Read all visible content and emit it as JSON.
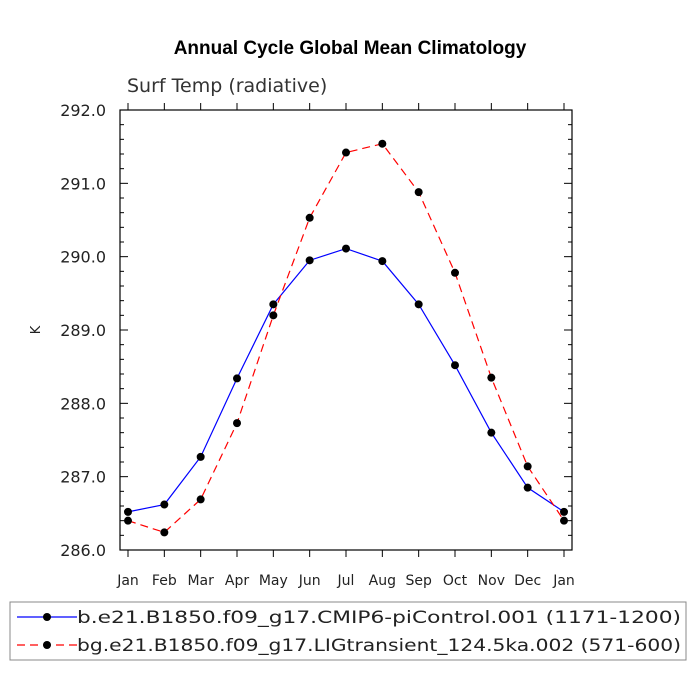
{
  "chart_data": {
    "type": "line",
    "title": "Annual Cycle Global Mean Climatology",
    "subtitle": "Surf Temp (radiative)",
    "ylabel": "K",
    "xlabel": "",
    "categories": [
      "Jan",
      "Feb",
      "Mar",
      "Apr",
      "May",
      "Jun",
      "Jul",
      "Aug",
      "Sep",
      "Oct",
      "Nov",
      "Dec",
      "Jan"
    ],
    "ylim": [
      286.0,
      292.0
    ],
    "yticks": [
      "286.0",
      "287.0",
      "288.0",
      "289.0",
      "290.0",
      "291.0",
      "292.0"
    ],
    "grid": false,
    "legend_position": "bottom",
    "series": [
      {
        "name": "b.e21.B1850.f09_g17.CMIP6-piControl.001 (1171-1200)",
        "color": "#0000ff",
        "style": "solid",
        "values": [
          286.52,
          286.62,
          287.27,
          288.34,
          289.35,
          289.95,
          290.11,
          289.94,
          289.35,
          288.52,
          287.6,
          286.85,
          286.52
        ]
      },
      {
        "name": "bg.e21.B1850.f09_g17.LIGtransient_124.5ka.002 (571-600)",
        "color": "#ff0000",
        "style": "dashed",
        "values": [
          286.4,
          286.24,
          286.69,
          287.73,
          289.2,
          290.53,
          291.42,
          291.54,
          290.88,
          289.78,
          288.35,
          287.14,
          286.4
        ]
      }
    ]
  }
}
